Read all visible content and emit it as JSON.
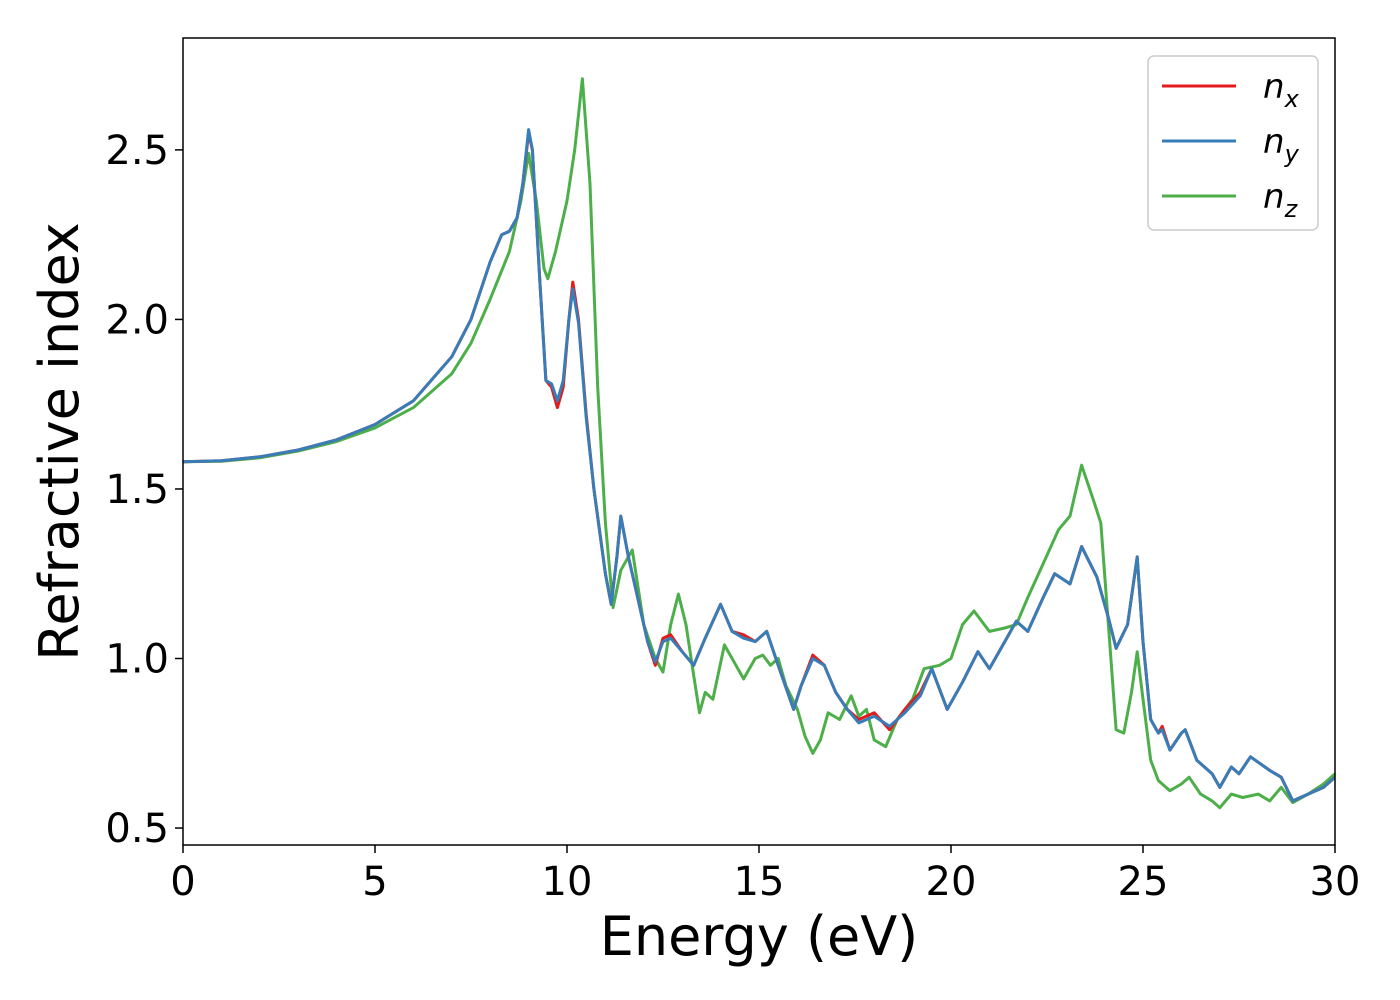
{
  "chart_data": {
    "type": "line",
    "xlabel": "Energy (eV)",
    "ylabel": "Refractive index",
    "xlim": [
      0,
      30
    ],
    "ylim": [
      0.45,
      2.83
    ],
    "xticks": [
      0,
      5,
      10,
      15,
      20,
      25,
      30
    ],
    "xtick_labels": [
      "0",
      "5",
      "10",
      "15",
      "20",
      "25",
      "30"
    ],
    "yticks": [
      0.5,
      1.0,
      1.5,
      2.0,
      2.5
    ],
    "ytick_labels": [
      "0.5",
      "1.0",
      "1.5",
      "2.0",
      "2.5"
    ],
    "grid": false,
    "legend_position": "top-right",
    "series": [
      {
        "name": "n",
        "subscript": "x",
        "color": "#e41a1c",
        "points": [
          [
            0,
            1.58
          ],
          [
            1,
            1.583
          ],
          [
            2,
            1.595
          ],
          [
            3,
            1.615
          ],
          [
            4,
            1.645
          ],
          [
            5,
            1.69
          ],
          [
            6,
            1.76
          ],
          [
            7,
            1.89
          ],
          [
            7.5,
            2.0
          ],
          [
            8,
            2.17
          ],
          [
            8.3,
            2.25
          ],
          [
            8.5,
            2.26
          ],
          [
            8.7,
            2.3
          ],
          [
            8.85,
            2.4
          ],
          [
            9.0,
            2.55
          ],
          [
            9.1,
            2.5
          ],
          [
            9.3,
            2.1
          ],
          [
            9.45,
            1.82
          ],
          [
            9.6,
            1.8
          ],
          [
            9.75,
            1.74
          ],
          [
            9.9,
            1.8
          ],
          [
            10.05,
            2.0
          ],
          [
            10.15,
            2.11
          ],
          [
            10.3,
            2.0
          ],
          [
            10.5,
            1.72
          ],
          [
            10.7,
            1.5
          ],
          [
            11.0,
            1.25
          ],
          [
            11.15,
            1.16
          ],
          [
            11.3,
            1.3
          ],
          [
            11.4,
            1.42
          ],
          [
            11.6,
            1.3
          ],
          [
            11.8,
            1.2
          ],
          [
            12.1,
            1.05
          ],
          [
            12.3,
            0.98
          ],
          [
            12.5,
            1.06
          ],
          [
            12.7,
            1.07
          ],
          [
            13.0,
            1.02
          ],
          [
            13.3,
            0.98
          ],
          [
            13.6,
            1.06
          ],
          [
            14.0,
            1.16
          ],
          [
            14.3,
            1.08
          ],
          [
            14.6,
            1.07
          ],
          [
            14.9,
            1.05
          ],
          [
            15.2,
            1.08
          ],
          [
            15.5,
            0.98
          ],
          [
            15.9,
            0.85
          ],
          [
            16.1,
            0.92
          ],
          [
            16.4,
            1.01
          ],
          [
            16.7,
            0.98
          ],
          [
            17.0,
            0.9
          ],
          [
            17.3,
            0.85
          ],
          [
            17.6,
            0.82
          ],
          [
            18.0,
            0.84
          ],
          [
            18.4,
            0.79
          ],
          [
            18.8,
            0.85
          ],
          [
            19.2,
            0.9
          ],
          [
            19.5,
            0.97
          ],
          [
            19.9,
            0.85
          ],
          [
            20.3,
            0.93
          ],
          [
            20.7,
            1.02
          ],
          [
            21.0,
            0.97
          ],
          [
            21.4,
            1.05
          ],
          [
            21.7,
            1.11
          ],
          [
            22.0,
            1.08
          ],
          [
            22.4,
            1.18
          ],
          [
            22.7,
            1.25
          ],
          [
            23.1,
            1.22
          ],
          [
            23.4,
            1.33
          ],
          [
            23.8,
            1.24
          ],
          [
            24.1,
            1.12
          ],
          [
            24.3,
            1.03
          ],
          [
            24.6,
            1.1
          ],
          [
            24.85,
            1.3
          ],
          [
            25.0,
            1.05
          ],
          [
            25.2,
            0.82
          ],
          [
            25.4,
            0.78
          ],
          [
            25.5,
            0.8
          ],
          [
            25.7,
            0.73
          ],
          [
            26.0,
            0.78
          ],
          [
            26.1,
            0.79
          ],
          [
            26.4,
            0.7
          ],
          [
            26.8,
            0.66
          ],
          [
            27.0,
            0.62
          ],
          [
            27.3,
            0.68
          ],
          [
            27.5,
            0.66
          ],
          [
            27.8,
            0.71
          ],
          [
            28.3,
            0.67
          ],
          [
            28.6,
            0.65
          ],
          [
            28.9,
            0.58
          ],
          [
            29.3,
            0.6
          ],
          [
            29.7,
            0.62
          ],
          [
            30,
            0.65
          ]
        ]
      },
      {
        "name": "n",
        "subscript": "y",
        "color": "#377eb8",
        "points": [
          [
            0,
            1.58
          ],
          [
            1,
            1.583
          ],
          [
            2,
            1.595
          ],
          [
            3,
            1.615
          ],
          [
            4,
            1.645
          ],
          [
            5,
            1.69
          ],
          [
            6,
            1.76
          ],
          [
            7,
            1.89
          ],
          [
            7.5,
            2.0
          ],
          [
            8,
            2.17
          ],
          [
            8.3,
            2.25
          ],
          [
            8.5,
            2.26
          ],
          [
            8.7,
            2.3
          ],
          [
            8.85,
            2.4
          ],
          [
            9.0,
            2.56
          ],
          [
            9.1,
            2.5
          ],
          [
            9.3,
            2.1
          ],
          [
            9.45,
            1.82
          ],
          [
            9.6,
            1.81
          ],
          [
            9.75,
            1.76
          ],
          [
            9.9,
            1.82
          ],
          [
            10.05,
            2.0
          ],
          [
            10.15,
            2.09
          ],
          [
            10.3,
            1.99
          ],
          [
            10.5,
            1.71
          ],
          [
            10.7,
            1.5
          ],
          [
            11.0,
            1.25
          ],
          [
            11.15,
            1.16
          ],
          [
            11.3,
            1.3
          ],
          [
            11.4,
            1.42
          ],
          [
            11.6,
            1.3
          ],
          [
            11.8,
            1.2
          ],
          [
            12.1,
            1.05
          ],
          [
            12.3,
            0.99
          ],
          [
            12.5,
            1.05
          ],
          [
            12.7,
            1.06
          ],
          [
            13.0,
            1.02
          ],
          [
            13.3,
            0.98
          ],
          [
            13.6,
            1.06
          ],
          [
            14.0,
            1.16
          ],
          [
            14.3,
            1.08
          ],
          [
            14.6,
            1.06
          ],
          [
            14.9,
            1.05
          ],
          [
            15.2,
            1.08
          ],
          [
            15.5,
            0.98
          ],
          [
            15.9,
            0.85
          ],
          [
            16.1,
            0.92
          ],
          [
            16.4,
            1.0
          ],
          [
            16.7,
            0.98
          ],
          [
            17.0,
            0.9
          ],
          [
            17.3,
            0.85
          ],
          [
            17.6,
            0.81
          ],
          [
            18.0,
            0.83
          ],
          [
            18.4,
            0.8
          ],
          [
            18.8,
            0.84
          ],
          [
            19.2,
            0.89
          ],
          [
            19.5,
            0.97
          ],
          [
            19.9,
            0.85
          ],
          [
            20.3,
            0.93
          ],
          [
            20.7,
            1.02
          ],
          [
            21.0,
            0.97
          ],
          [
            21.4,
            1.05
          ],
          [
            21.7,
            1.11
          ],
          [
            22.0,
            1.08
          ],
          [
            22.4,
            1.18
          ],
          [
            22.7,
            1.25
          ],
          [
            23.1,
            1.22
          ],
          [
            23.4,
            1.33
          ],
          [
            23.8,
            1.24
          ],
          [
            24.1,
            1.12
          ],
          [
            24.3,
            1.03
          ],
          [
            24.6,
            1.1
          ],
          [
            24.85,
            1.3
          ],
          [
            25.0,
            1.05
          ],
          [
            25.2,
            0.82
          ],
          [
            25.4,
            0.78
          ],
          [
            25.5,
            0.79
          ],
          [
            25.7,
            0.73
          ],
          [
            26.0,
            0.78
          ],
          [
            26.1,
            0.79
          ],
          [
            26.4,
            0.7
          ],
          [
            26.8,
            0.66
          ],
          [
            27.0,
            0.62
          ],
          [
            27.3,
            0.68
          ],
          [
            27.5,
            0.66
          ],
          [
            27.8,
            0.71
          ],
          [
            28.3,
            0.67
          ],
          [
            28.6,
            0.65
          ],
          [
            28.9,
            0.58
          ],
          [
            29.3,
            0.6
          ],
          [
            29.7,
            0.62
          ],
          [
            30,
            0.65
          ]
        ]
      },
      {
        "name": "n",
        "subscript": "z",
        "color": "#4daf4a",
        "points": [
          [
            0,
            1.58
          ],
          [
            1,
            1.582
          ],
          [
            2,
            1.592
          ],
          [
            3,
            1.612
          ],
          [
            4,
            1.64
          ],
          [
            5,
            1.68
          ],
          [
            6,
            1.74
          ],
          [
            7,
            1.84
          ],
          [
            7.5,
            1.93
          ],
          [
            8,
            2.06
          ],
          [
            8.5,
            2.2
          ],
          [
            8.8,
            2.35
          ],
          [
            9.0,
            2.49
          ],
          [
            9.2,
            2.35
          ],
          [
            9.4,
            2.15
          ],
          [
            9.5,
            2.12
          ],
          [
            9.7,
            2.2
          ],
          [
            10.0,
            2.35
          ],
          [
            10.2,
            2.5
          ],
          [
            10.4,
            2.71
          ],
          [
            10.6,
            2.4
          ],
          [
            10.8,
            1.8
          ],
          [
            11.0,
            1.4
          ],
          [
            11.2,
            1.15
          ],
          [
            11.4,
            1.26
          ],
          [
            11.6,
            1.3
          ],
          [
            11.7,
            1.32
          ],
          [
            12.0,
            1.1
          ],
          [
            12.3,
            1.0
          ],
          [
            12.5,
            0.96
          ],
          [
            12.7,
            1.1
          ],
          [
            12.9,
            1.19
          ],
          [
            13.1,
            1.1
          ],
          [
            13.3,
            0.95
          ],
          [
            13.45,
            0.84
          ],
          [
            13.6,
            0.9
          ],
          [
            13.8,
            0.88
          ],
          [
            14.1,
            1.04
          ],
          [
            14.3,
            1.0
          ],
          [
            14.6,
            0.94
          ],
          [
            14.9,
            1.0
          ],
          [
            15.1,
            1.01
          ],
          [
            15.3,
            0.98
          ],
          [
            15.5,
            1.0
          ],
          [
            15.7,
            0.92
          ],
          [
            16.0,
            0.85
          ],
          [
            16.2,
            0.77
          ],
          [
            16.4,
            0.72
          ],
          [
            16.6,
            0.76
          ],
          [
            16.8,
            0.84
          ],
          [
            17.1,
            0.82
          ],
          [
            17.4,
            0.89
          ],
          [
            17.6,
            0.83
          ],
          [
            17.8,
            0.85
          ],
          [
            18.0,
            0.76
          ],
          [
            18.3,
            0.74
          ],
          [
            18.6,
            0.82
          ],
          [
            19.0,
            0.88
          ],
          [
            19.3,
            0.97
          ],
          [
            19.7,
            0.98
          ],
          [
            20.0,
            1.0
          ],
          [
            20.3,
            1.1
          ],
          [
            20.6,
            1.14
          ],
          [
            21.0,
            1.08
          ],
          [
            21.4,
            1.09
          ],
          [
            21.7,
            1.1
          ],
          [
            22.0,
            1.18
          ],
          [
            22.4,
            1.28
          ],
          [
            22.8,
            1.38
          ],
          [
            23.1,
            1.42
          ],
          [
            23.4,
            1.57
          ],
          [
            23.7,
            1.47
          ],
          [
            23.9,
            1.4
          ],
          [
            24.1,
            1.1
          ],
          [
            24.3,
            0.79
          ],
          [
            24.5,
            0.78
          ],
          [
            24.7,
            0.9
          ],
          [
            24.85,
            1.02
          ],
          [
            25.0,
            0.88
          ],
          [
            25.2,
            0.7
          ],
          [
            25.4,
            0.64
          ],
          [
            25.7,
            0.61
          ],
          [
            26.0,
            0.63
          ],
          [
            26.2,
            0.65
          ],
          [
            26.5,
            0.6
          ],
          [
            26.8,
            0.58
          ],
          [
            27.0,
            0.56
          ],
          [
            27.3,
            0.6
          ],
          [
            27.6,
            0.59
          ],
          [
            28.0,
            0.6
          ],
          [
            28.3,
            0.58
          ],
          [
            28.6,
            0.62
          ],
          [
            28.9,
            0.575
          ],
          [
            29.3,
            0.6
          ],
          [
            29.7,
            0.63
          ],
          [
            30,
            0.66
          ]
        ]
      }
    ]
  }
}
